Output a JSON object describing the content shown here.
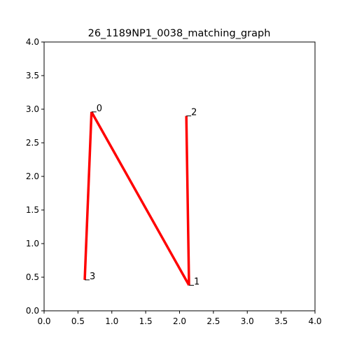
{
  "chart_data": {
    "type": "line",
    "title": "26_1189NP1_0038_matching_graph",
    "xlabel": "",
    "ylabel": "",
    "xlim": [
      0.0,
      4.0
    ],
    "ylim": [
      0.0,
      4.0
    ],
    "x_ticks": [
      "0.0",
      "0.5",
      "1.0",
      "1.5",
      "2.0",
      "2.5",
      "3.0",
      "3.5",
      "4.0"
    ],
    "y_ticks": [
      "0.0",
      "0.5",
      "1.0",
      "1.5",
      "2.0",
      "2.5",
      "3.0",
      "3.5",
      "4.0"
    ],
    "grid": false,
    "line_color": "#ff0000",
    "nodes": [
      {
        "label": "0",
        "x": 0.7,
        "y": 2.96
      },
      {
        "label": "1",
        "x": 2.14,
        "y": 0.38
      },
      {
        "label": "2",
        "x": 2.1,
        "y": 2.9
      },
      {
        "label": "3",
        "x": 0.6,
        "y": 0.46
      }
    ],
    "edges": [
      [
        3,
        0
      ],
      [
        0,
        1
      ],
      [
        1,
        2
      ]
    ]
  }
}
